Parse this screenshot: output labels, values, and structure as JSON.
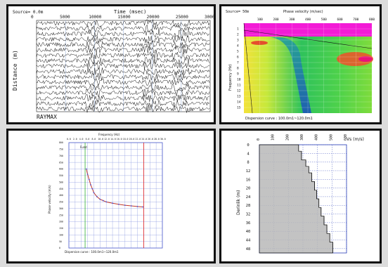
{
  "seismic": {
    "source_label": "Source= 0.0m",
    "x_axis_title": "Time (msec)",
    "x_ticks": [
      "0",
      "5000",
      "10000",
      "15000",
      "20000",
      "25000",
      "30000"
    ],
    "y_axis_title": "Distance (m)",
    "bottom_label": "RAYMAX",
    "trace_count": 17
  },
  "dispersion_image": {
    "source_label": "Source= 50m",
    "x_axis_title": "Phase velocity (m/sec)",
    "x_ticks": [
      "100",
      "200",
      "300",
      "400",
      "500",
      "600",
      "700",
      "800"
    ],
    "y_axis_title": "Frequency (Hz)",
    "y_ticks": [
      "1",
      "2",
      "3",
      "4",
      "5",
      "6",
      "7",
      "8",
      "9",
      "10",
      "11",
      "12",
      "13",
      "14",
      "15"
    ],
    "footer": "Dispersion curve : 100.0m1~120.0m1"
  },
  "dispersion_curve": {
    "x_axis_title": "Frequency (Hz)",
    "x_ticks": [
      "0.0",
      "2.0",
      "4.0",
      "6.0",
      "8.0",
      "10.0",
      "12.0",
      "14.0",
      "16.0",
      "18.0",
      "20.0",
      "22.0",
      "24.0",
      "26.0",
      "28.0",
      "30.0"
    ],
    "y_axis_title": "Phase velocity (m/s)",
    "y_ticks": [
      "800",
      "750",
      "700",
      "650",
      "600",
      "550",
      "500",
      "450",
      "400",
      "350",
      "300",
      "250",
      "200",
      "150",
      "100",
      "50",
      "0"
    ],
    "legend_label": "Fund",
    "footer": "Dispersion curve : 100.0m1~120.0m1",
    "chart_data": {
      "type": "line",
      "xlabel": "Frequency (Hz)",
      "ylabel": "Phase velocity (m/s)",
      "xlim": [
        0,
        30
      ],
      "ylim": [
        0,
        800
      ],
      "series": [
        {
          "x": [
            5.6,
            6.0,
            6.5,
            7.0,
            7.5,
            8.0,
            9.0,
            10.0,
            11.0,
            12.0,
            14.0,
            16.0,
            18.0,
            20.0,
            22.0,
            23.7
          ],
          "y": [
            600,
            560,
            520,
            480,
            450,
            420,
            390,
            370,
            360,
            350,
            340,
            332,
            325,
            320,
            315,
            312
          ]
        }
      ],
      "vlines": [
        {
          "x": 5.2,
          "color": "#33b033"
        },
        {
          "x": 24.0,
          "color": "#e02020"
        }
      ]
    }
  },
  "vs_profile": {
    "x_axis_title": "Vs (m/s)",
    "x_ticks": [
      "0",
      "100",
      "200",
      "300",
      "400",
      "500",
      "600"
    ],
    "y_axis_title": "Derinlik (m)",
    "y_ticks": [
      "0",
      "4",
      "8",
      "12",
      "16",
      "20",
      "24",
      "28",
      "32",
      "36",
      "40",
      "44",
      "48"
    ],
    "chart_data": {
      "type": "area",
      "xlabel": "Vs (m/s)",
      "ylabel": "Derinlik (m)",
      "xlim": [
        0,
        600
      ],
      "ylim": [
        0,
        50
      ],
      "layers": [
        {
          "top": 0,
          "bottom": 3,
          "vs": 270
        },
        {
          "top": 3,
          "bottom": 7,
          "vs": 290
        },
        {
          "top": 7,
          "bottom": 10,
          "vs": 320
        },
        {
          "top": 10,
          "bottom": 13,
          "vs": 340
        },
        {
          "top": 13,
          "bottom": 17,
          "vs": 360
        },
        {
          "top": 17,
          "bottom": 21,
          "vs": 380
        },
        {
          "top": 21,
          "bottom": 25,
          "vs": 395
        },
        {
          "top": 25,
          "bottom": 29,
          "vs": 410
        },
        {
          "top": 29,
          "bottom": 33,
          "vs": 425
        },
        {
          "top": 33,
          "bottom": 37,
          "vs": 445
        },
        {
          "top": 37,
          "bottom": 41,
          "vs": 465
        },
        {
          "top": 41,
          "bottom": 45,
          "vs": 485
        },
        {
          "top": 45,
          "bottom": 50,
          "vs": 505
        }
      ]
    }
  }
}
